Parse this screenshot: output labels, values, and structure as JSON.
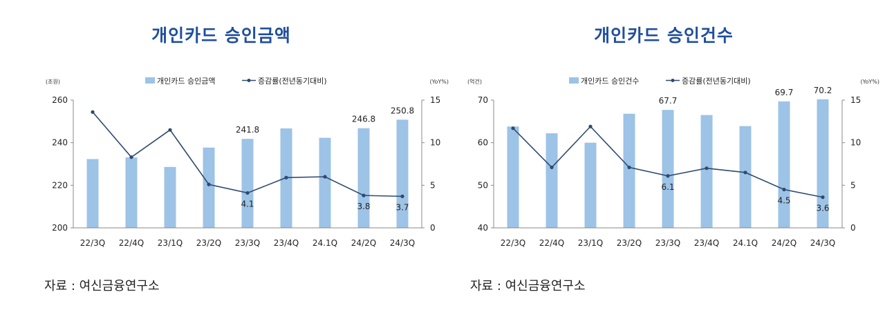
{
  "source_label": "자료 : 여신금융연구소",
  "chart_data": [
    {
      "type": "bar",
      "title": "개인카드 승인금액",
      "unit_left": "(조원)",
      "unit_right": "(YoY%)",
      "legend": {
        "bar": "개인카드 승인금액",
        "line": "증감률(전년동기대비)"
      },
      "categories": [
        "22/3Q",
        "22/4Q",
        "23/1Q",
        "23/2Q",
        "23/3Q",
        "23/4Q",
        "24.1Q",
        "24/2Q",
        "24/3Q"
      ],
      "series": [
        {
          "name": "개인카드 승인금액",
          "type": "bar",
          "axis": "left",
          "values": [
            232.3,
            233.1,
            228.6,
            237.7,
            241.8,
            246.7,
            242.3,
            246.8,
            250.8
          ]
        },
        {
          "name": "증감률(전년동기대비)",
          "type": "line",
          "axis": "right",
          "values": [
            13.6,
            8.3,
            11.5,
            5.1,
            4.1,
            5.9,
            6.0,
            3.8,
            3.7
          ]
        }
      ],
      "bar_labels": {
        "4": "241.8",
        "7": "246.8",
        "8": "250.8"
      },
      "line_labels": {
        "4": "4.1",
        "7": "3.8",
        "8": "3.7"
      },
      "ylim_left": [
        200,
        260
      ],
      "yticks_left": [
        200,
        220,
        240,
        260
      ],
      "ylim_right": [
        0,
        15
      ],
      "yticks_right": [
        0,
        5,
        10,
        15
      ],
      "colors": {
        "bar": "#9dc3e6",
        "line": "#2e4a6e"
      },
      "grid": false,
      "legend_position": "top"
    },
    {
      "type": "bar",
      "title": "개인카드 승인건수",
      "unit_left": "(억건)",
      "unit_right": "(YoY%)",
      "legend": {
        "bar": "개인카드 승인건수",
        "line": "증감률(전년동기대비)"
      },
      "categories": [
        "22/3Q",
        "22/4Q",
        "23/1Q",
        "23/2Q",
        "23/3Q",
        "23/4Q",
        "24.1Q",
        "24/2Q",
        "24/3Q"
      ],
      "series": [
        {
          "name": "개인카드 승인건수",
          "type": "bar",
          "axis": "left",
          "values": [
            63.8,
            62.2,
            60.0,
            66.8,
            67.7,
            66.5,
            63.9,
            69.7,
            70.2
          ]
        },
        {
          "name": "증감률(전년동기대비)",
          "type": "line",
          "axis": "right",
          "values": [
            11.7,
            7.1,
            11.9,
            7.1,
            6.1,
            7.0,
            6.5,
            4.5,
            3.6
          ]
        }
      ],
      "bar_labels": {
        "4": "67.7",
        "7": "69.7",
        "8": "70.2"
      },
      "line_labels": {
        "4": "6.1",
        "7": "4.5",
        "8": "3.6"
      },
      "ylim_left": [
        40,
        70
      ],
      "yticks_left": [
        40,
        50,
        60,
        70
      ],
      "ylim_right": [
        0,
        15
      ],
      "yticks_right": [
        0,
        5,
        10,
        15
      ],
      "colors": {
        "bar": "#9dc3e6",
        "line": "#2e4a6e"
      },
      "grid": false,
      "legend_position": "top"
    }
  ]
}
